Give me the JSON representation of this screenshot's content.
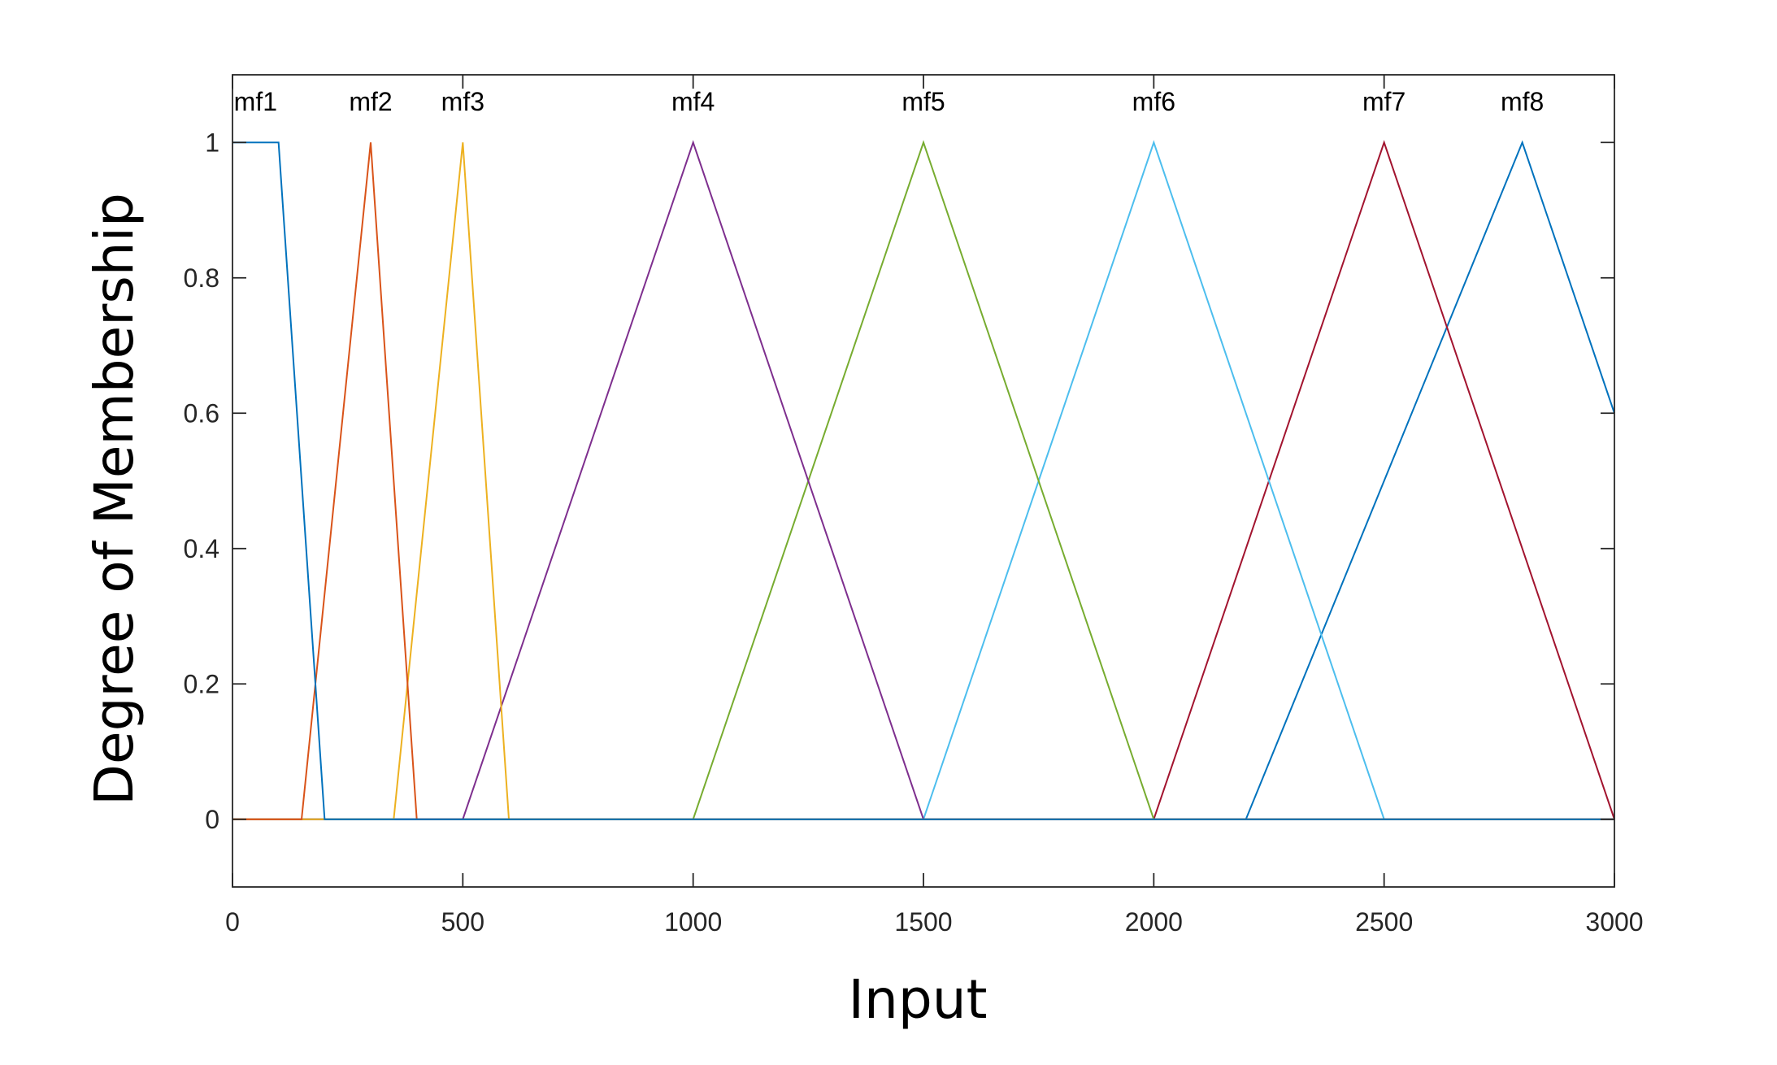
{
  "chart_data": {
    "type": "line",
    "xlabel": "Input",
    "ylabel": "Degree of Membership",
    "xlim": [
      0,
      3000
    ],
    "ylim": [
      -0.1,
      1.1
    ],
    "xticks": [
      0,
      500,
      1000,
      1500,
      2000,
      2500,
      3000
    ],
    "yticks": [
      0,
      0.2,
      0.4,
      0.6,
      0.8,
      1
    ],
    "xtick_labels": [
      "0",
      "500",
      "1000",
      "1500",
      "2000",
      "2500",
      "3000"
    ],
    "ytick_labels": [
      "0",
      "0.2",
      "0.4",
      "0.6",
      "0.8",
      "1"
    ],
    "grid": false,
    "series": [
      {
        "name": "mf1",
        "color": "#0072BD",
        "x": [
          0,
          100,
          200,
          3000
        ],
        "y": [
          1,
          1,
          0,
          0
        ]
      },
      {
        "name": "mf2",
        "color": "#D95319",
        "x": [
          0,
          150,
          300,
          400,
          3000
        ],
        "y": [
          0,
          0,
          1,
          0,
          0
        ]
      },
      {
        "name": "mf3",
        "color": "#EDB120",
        "x": [
          0,
          350,
          500,
          600,
          3000
        ],
        "y": [
          0,
          0,
          1,
          0,
          0
        ]
      },
      {
        "name": "mf4",
        "color": "#7E2F8E",
        "x": [
          0,
          500,
          1000,
          1500,
          3000
        ],
        "y": [
          0,
          0,
          1,
          0,
          0
        ]
      },
      {
        "name": "mf5",
        "color": "#77AC30",
        "x": [
          0,
          1000,
          1500,
          2000,
          3000
        ],
        "y": [
          0,
          0,
          1,
          0,
          0
        ]
      },
      {
        "name": "mf6",
        "color": "#4DBEEE",
        "x": [
          0,
          1500,
          2000,
          2500,
          3000
        ],
        "y": [
          0,
          0,
          1,
          0,
          0
        ]
      },
      {
        "name": "mf7",
        "color": "#A2142F",
        "x": [
          0,
          2000,
          2500,
          3000
        ],
        "y": [
          0,
          0,
          1,
          0
        ]
      },
      {
        "name": "mf8",
        "color": "#0072BD",
        "x": [
          0,
          2200,
          2800,
          3000
        ],
        "y": [
          0,
          0,
          1,
          0.6
        ]
      }
    ]
  }
}
